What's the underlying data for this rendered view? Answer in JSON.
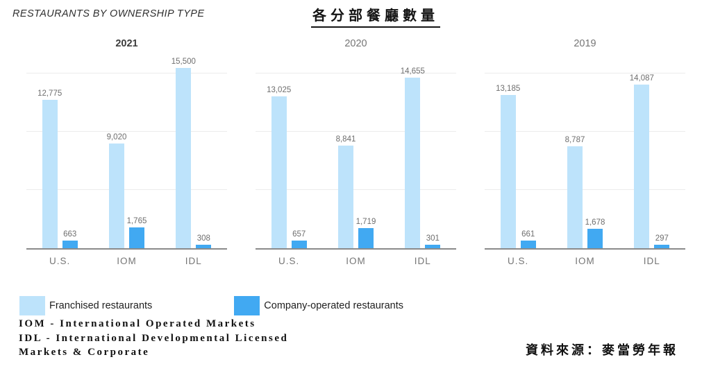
{
  "header": {
    "title_en": "RESTAURANTS BY OWNERSHIP TYPE",
    "title_zh": "各分部餐廳數量"
  },
  "legend": {
    "franchised_label": "Franchised restaurants",
    "company_label": "Company-operated restaurants"
  },
  "footnotes": {
    "line1": "IOM - International Operated Markets",
    "line2": "IDL - International Developmental Licensed",
    "line3": "Markets & Corporate",
    "source": "資料來源：麥當勞年報"
  },
  "colors": {
    "franchised": "#BDE3FB",
    "company": "#41A9F2",
    "axis": "#8A8A8A",
    "gridline": "#ECECEC",
    "value_label": "#6E6E6E"
  },
  "chart_data": [
    {
      "type": "bar",
      "title": "2021",
      "title_bold": true,
      "categories": [
        "U.S.",
        "IOM",
        "IDL"
      ],
      "series": [
        {
          "name": "Franchised restaurants",
          "values": [
            12775,
            9020,
            15500
          ]
        },
        {
          "name": "Company-operated restaurants",
          "values": [
            663,
            1765,
            308
          ]
        }
      ],
      "ylim": [
        0,
        16200
      ],
      "gridlines": [
        5000,
        10000,
        15000
      ],
      "grid": true,
      "legend_position": "bottom"
    },
    {
      "type": "bar",
      "title": "2020",
      "title_bold": false,
      "categories": [
        "U.S.",
        "IOM",
        "IDL"
      ],
      "series": [
        {
          "name": "Franchised restaurants",
          "values": [
            13025,
            8841,
            14655
          ]
        },
        {
          "name": "Company-operated restaurants",
          "values": [
            657,
            1719,
            301
          ]
        }
      ],
      "ylim": [
        0,
        16200
      ],
      "gridlines": [
        5000,
        10000,
        15000
      ],
      "grid": true,
      "legend_position": "bottom"
    },
    {
      "type": "bar",
      "title": "2019",
      "title_bold": false,
      "categories": [
        "U.S.",
        "IOM",
        "IDL"
      ],
      "series": [
        {
          "name": "Franchised restaurants",
          "values": [
            13185,
            8787,
            14087
          ]
        },
        {
          "name": "Company-operated restaurants",
          "values": [
            661,
            1678,
            297
          ]
        }
      ],
      "ylim": [
        0,
        16200
      ],
      "gridlines": [
        5000,
        10000,
        15000
      ],
      "grid": true,
      "legend_position": "bottom"
    }
  ]
}
